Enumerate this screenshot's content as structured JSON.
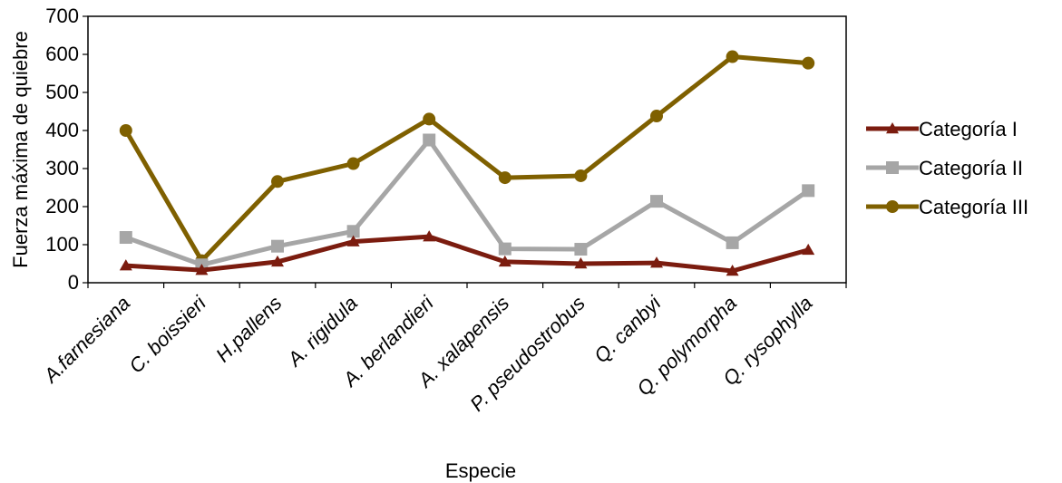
{
  "chart_data": {
    "type": "line",
    "title": "",
    "xlabel": "Especie",
    "ylabel": "Fuerza máxima de quiebre",
    "ylim": [
      0,
      700
    ],
    "yticks": [
      0,
      100,
      200,
      300,
      400,
      500,
      600,
      700
    ],
    "yticks_labels": [
      "0",
      "100",
      "200",
      "300",
      "400",
      "500",
      "600",
      "700"
    ],
    "grid": false,
    "legend_position": "right",
    "categories": [
      "A.farnesiana",
      "C. boissieri",
      "H.pallens",
      "A. rigidula",
      "A. berlandieri",
      "A. xalapensis",
      "P. pseudostrobus",
      "Q. canbyi",
      "Q. polymorpha",
      "Q. rysophylla"
    ],
    "series": [
      {
        "name": "Categoría I",
        "color": "#7b1c0f",
        "marker": "triangle",
        "values": [
          45,
          33,
          55,
          108,
          121,
          55,
          50,
          52,
          31,
          86
        ]
      },
      {
        "name": "Categoría II",
        "color": "#a6a6a6",
        "marker": "square",
        "values": [
          119,
          47,
          96,
          135,
          375,
          89,
          88,
          214,
          105,
          242
        ]
      },
      {
        "name": "Categoría III",
        "color": "#7f6000",
        "marker": "circle",
        "values": [
          400,
          58,
          266,
          313,
          430,
          276,
          281,
          438,
          594,
          577
        ]
      }
    ]
  }
}
